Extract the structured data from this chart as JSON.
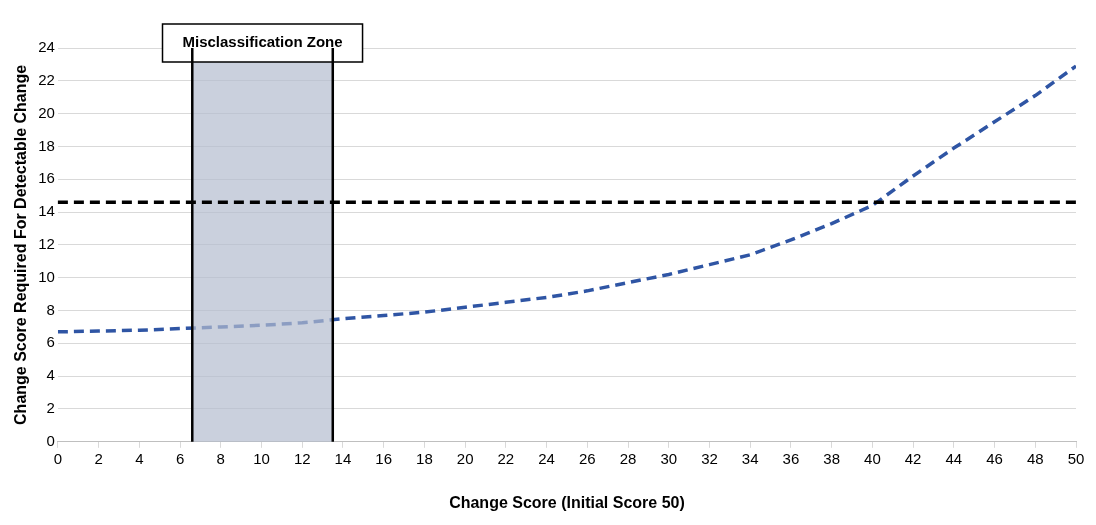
{
  "chart_data": {
    "type": "line",
    "xlabel": "Change Score (Initial Score 50)",
    "ylabel": "Change Score Required For Detectable Change",
    "series": [
      {
        "color": "#2f55a4",
        "line_style": "dashed",
        "x": [
          0,
          2,
          4,
          6,
          8,
          10,
          12,
          14,
          16,
          18,
          20,
          22,
          24,
          26,
          28,
          30,
          32,
          34,
          36,
          38,
          40,
          42,
          44,
          46,
          48,
          50
        ],
        "values": [
          6.7,
          6.75,
          6.8,
          6.9,
          7.0,
          7.1,
          7.25,
          7.5,
          7.7,
          7.9,
          8.2,
          8.5,
          8.8,
          9.2,
          9.7,
          10.2,
          10.8,
          11.4,
          12.3,
          13.3,
          14.4,
          16.2,
          17.9,
          19.5,
          21.1,
          22.9
        ]
      }
    ],
    "xlim": [
      0,
      50
    ],
    "xticks": [
      0,
      2,
      4,
      6,
      8,
      10,
      12,
      14,
      16,
      18,
      20,
      22,
      24,
      26,
      28,
      30,
      32,
      34,
      36,
      38,
      40,
      42,
      44,
      46,
      48,
      50
    ],
    "ylim": [
      0,
      24
    ],
    "yticks": [
      0,
      2,
      4,
      6,
      8,
      10,
      12,
      14,
      16,
      18,
      20,
      22,
      24
    ],
    "ref_lines": [
      {
        "axis": "y",
        "value": 14.6,
        "color": "#000000",
        "line_style": "dashed"
      },
      {
        "axis": "x",
        "value": 6.6,
        "color": "#000000",
        "line_style": "solid"
      },
      {
        "axis": "x",
        "value": 13.5,
        "color": "#000000",
        "line_style": "solid"
      }
    ],
    "bands": [
      {
        "axis": "x",
        "from": 6.6,
        "to": 13.5,
        "label": "Misclassification Zone",
        "color": "#b4bccf"
      }
    ],
    "grid": "y",
    "legend": false,
    "marker": "none"
  }
}
